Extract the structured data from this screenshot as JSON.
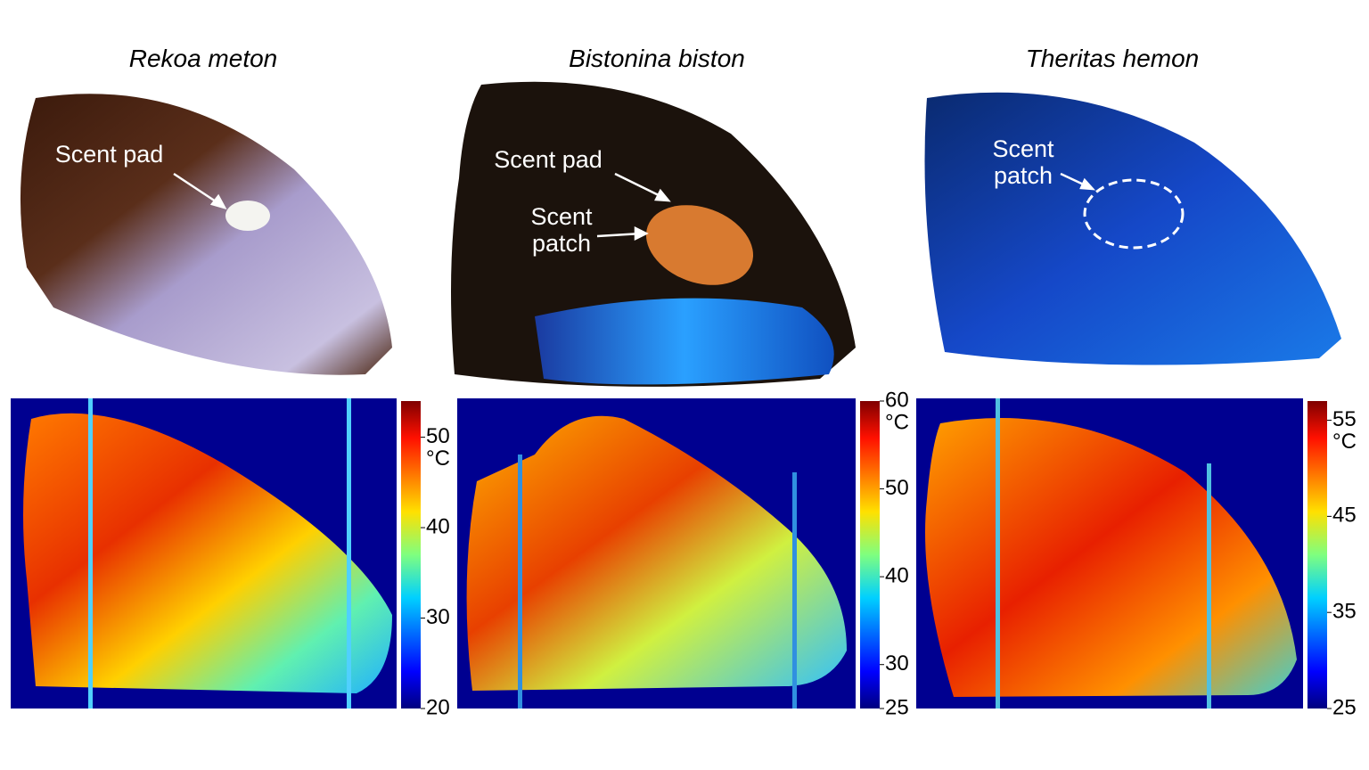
{
  "panels": [
    {
      "title": "Rekoa meton",
      "annotations": [
        "Scent pad"
      ],
      "colorbar": {
        "lim": [
          20,
          54
        ],
        "ticks": [
          20,
          30,
          40,
          50
        ],
        "unit": "°C"
      }
    },
    {
      "title": "Bistonina biston",
      "annotations": [
        "Scent pad",
        "Scent patch"
      ],
      "colorbar": {
        "lim": [
          25,
          60
        ],
        "ticks": [
          25,
          30,
          40,
          50,
          60
        ],
        "unit": "°C"
      }
    },
    {
      "title": "Theritas hemon",
      "annotations": [
        "Scent patch"
      ],
      "colorbar": {
        "lim": [
          25,
          57
        ],
        "ticks": [
          25,
          35,
          45,
          55
        ],
        "unit": "°C"
      }
    }
  ]
}
